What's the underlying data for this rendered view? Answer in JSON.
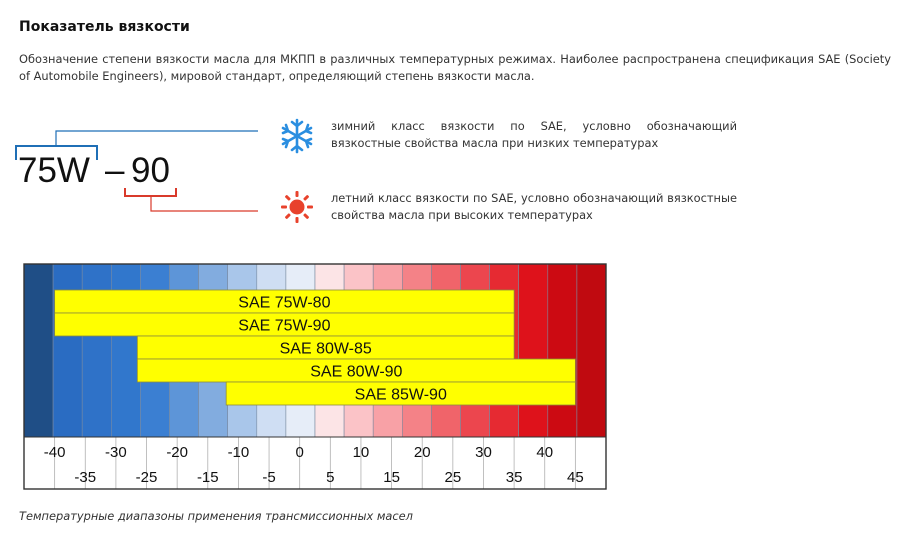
{
  "header": {
    "title": "Показатель вязкости"
  },
  "intro": {
    "text": "Обозначение степени вязкости масла для МКПП в различных температурных режимах. Наиболее распространена спецификация SAE (Society of Automobile Engineers), мировой стандарт, определяющий степень вязкости масла."
  },
  "designation": {
    "winter_part": "75W",
    "dash": "–",
    "summer_part": "90",
    "winter_icon": "snowflake-icon",
    "summer_icon": "sun-icon",
    "winter_color": "#1f6fb6",
    "summer_color": "#d93a2b",
    "winter_description": "зимний класс вязкости по SAE, условно обозначающий вязкостные свойства масла при низких температурах",
    "summer_description": "летний класс вязкости по SAE, условно обозначающий вязкостные свойства масла при высоких температурах"
  },
  "chart_data": {
    "type": "bar",
    "orientation": "horizontal-range",
    "title": "",
    "xlabel": "",
    "ylabel": "",
    "xlim": [
      -45,
      50
    ],
    "temperature_scale": [
      -45,
      -40,
      -35,
      -30,
      -25,
      -20,
      -15,
      -10,
      -5,
      0,
      5,
      10,
      15,
      20,
      25,
      30,
      35,
      40,
      45,
      50
    ],
    "upper_tick_labels": [
      "-40",
      "-30",
      "-20",
      "-10",
      "0",
      "10",
      "20",
      "30",
      "40"
    ],
    "upper_tick_values": [
      -40,
      -30,
      -20,
      -10,
      0,
      10,
      20,
      30,
      40
    ],
    "lower_tick_labels": [
      "-35",
      "-25",
      "-15",
      "-5",
      "5",
      "15",
      "25",
      "35",
      "45"
    ],
    "lower_tick_values": [
      -35,
      -25,
      -15,
      -5,
      5,
      15,
      25,
      35,
      45
    ],
    "background_colors": [
      "#1f4e86",
      "#2a6cc2",
      "#2f72c8",
      "#3177cc",
      "#3b7fd2",
      "#5d95d8",
      "#82acdf",
      "#a9c6ea",
      "#cfdef3",
      "#e6edf8",
      "#fce4e6",
      "#fbc3c7",
      "#f8a1a6",
      "#f48287",
      "#f0646a",
      "#ec464e",
      "#e62a32",
      "#de121b",
      "#cc0a12",
      "#c00a10"
    ],
    "bar_color": "#ffff00",
    "series": [
      {
        "name": "SAE 75W-80",
        "start": -40,
        "end": 35
      },
      {
        "name": "SAE 75W-90",
        "start": -40,
        "end": 35
      },
      {
        "name": "SAE 80W-85",
        "start": -26.5,
        "end": 35
      },
      {
        "name": "SAE 80W-90",
        "start": -26.5,
        "end": 45
      },
      {
        "name": "SAE 85W-90",
        "start": -12,
        "end": 45
      }
    ]
  },
  "footer": {
    "caption": "Температурные диапазоны применения трансмиссионных масел"
  }
}
